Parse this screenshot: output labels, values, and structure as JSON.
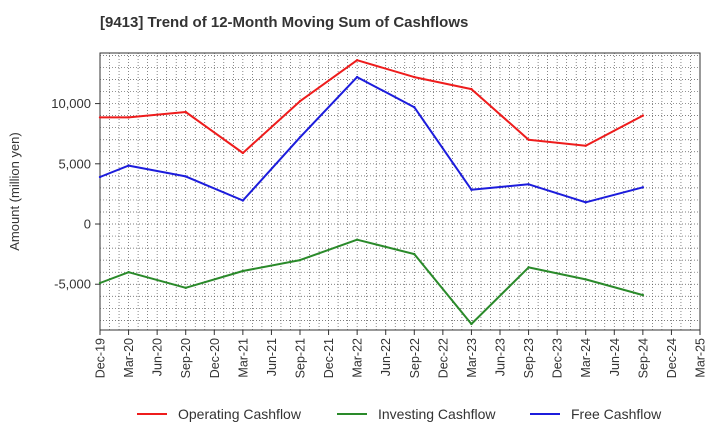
{
  "chart_data": {
    "type": "line",
    "title": "[9413]  Trend of 12-Month Moving Sum of Cashflows",
    "xlabel": "",
    "ylabel": "Amount (million yen)",
    "categories": [
      "Dec-19",
      "Mar-20",
      "Jun-20",
      "Sep-20",
      "Dec-20",
      "Mar-21",
      "Jun-21",
      "Sep-21",
      "Dec-21",
      "Mar-22",
      "Jun-22",
      "Sep-22",
      "Dec-22",
      "Mar-23",
      "Jun-23",
      "Sep-23",
      "Dec-23",
      "Mar-24",
      "Jun-24",
      "Sep-24",
      "Dec-24",
      "Mar-25"
    ],
    "ylim": [
      -8800,
      14200
    ],
    "yticks": [
      -5000,
      0,
      5000,
      10000
    ],
    "ytick_labels": [
      "-5,000",
      "0",
      "5,000",
      "10,000"
    ],
    "grid": true,
    "legend_position": "bottom",
    "series": [
      {
        "name": "Operating Cashflow",
        "color": "#ee1c1c",
        "x": [
          "Dec-19",
          "Mar-20",
          "Sep-20",
          "Mar-21",
          "Sep-21",
          "Mar-22",
          "Sep-22",
          "Mar-23",
          "Sep-23",
          "Mar-24",
          "Sep-24"
        ],
        "values": [
          8850,
          8850,
          9300,
          5900,
          10200,
          13600,
          12200,
          11200,
          7000,
          6500,
          9000
        ]
      },
      {
        "name": "Investing Cashflow",
        "color": "#2a8a2a",
        "x": [
          "Dec-19",
          "Mar-20",
          "Sep-20",
          "Mar-21",
          "Sep-21",
          "Mar-22",
          "Sep-22",
          "Mar-23",
          "Sep-23",
          "Mar-24",
          "Sep-24"
        ],
        "values": [
          -4900,
          -4000,
          -5300,
          -3900,
          -3000,
          -1300,
          -2500,
          -8300,
          -3600,
          -4600,
          -5900
        ]
      },
      {
        "name": "Free Cashflow",
        "color": "#1c1cdc",
        "x": [
          "Dec-19",
          "Mar-20",
          "Sep-20",
          "Mar-21",
          "Sep-21",
          "Mar-22",
          "Sep-22",
          "Mar-23",
          "Sep-23",
          "Mar-24",
          "Sep-24"
        ],
        "values": [
          3900,
          4850,
          3950,
          1950,
          7200,
          12200,
          9700,
          2850,
          3300,
          1800,
          3050
        ]
      }
    ]
  }
}
